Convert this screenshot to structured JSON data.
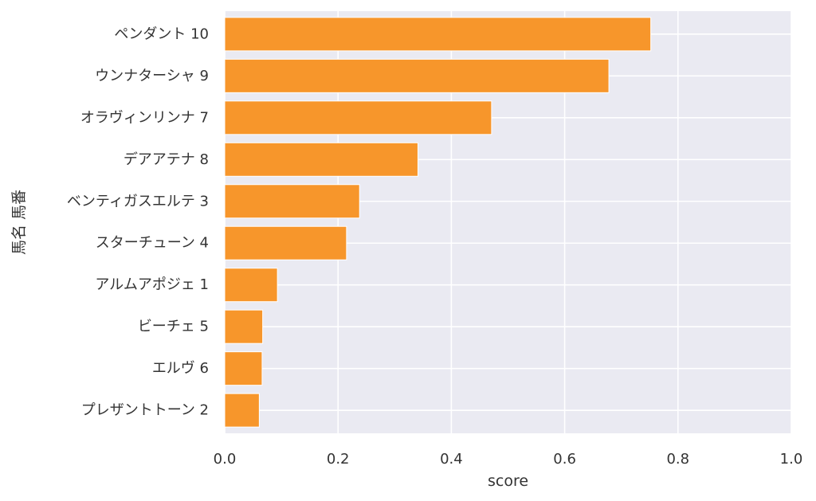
{
  "chart_data": {
    "type": "bar",
    "orientation": "horizontal",
    "title": "",
    "xlabel": "score",
    "ylabel": "馬名 馬番",
    "xlim": [
      0,
      1.0
    ],
    "xticks": [
      "0.0",
      "0.2",
      "0.4",
      "0.6",
      "0.8",
      "1.0"
    ],
    "grid": true,
    "categories": [
      "ペンダント 10",
      "ウンナターシャ 9",
      "オラヴィンリンナ 7",
      "デアアテナ 8",
      "ベンティガスエルテ 3",
      "スターチューン 4",
      "アルムアポジェ 1",
      "ビーチェ 5",
      "エルヴ 6",
      "プレザントトーン 2"
    ],
    "values": [
      0.752,
      0.678,
      0.471,
      0.341,
      0.238,
      0.215,
      0.093,
      0.067,
      0.066,
      0.061
    ],
    "colors": {
      "bar": "#f7962b",
      "bar_edge": "#ffffff",
      "plot_background": "#eaeaf2",
      "grid": "#ffffff"
    }
  }
}
